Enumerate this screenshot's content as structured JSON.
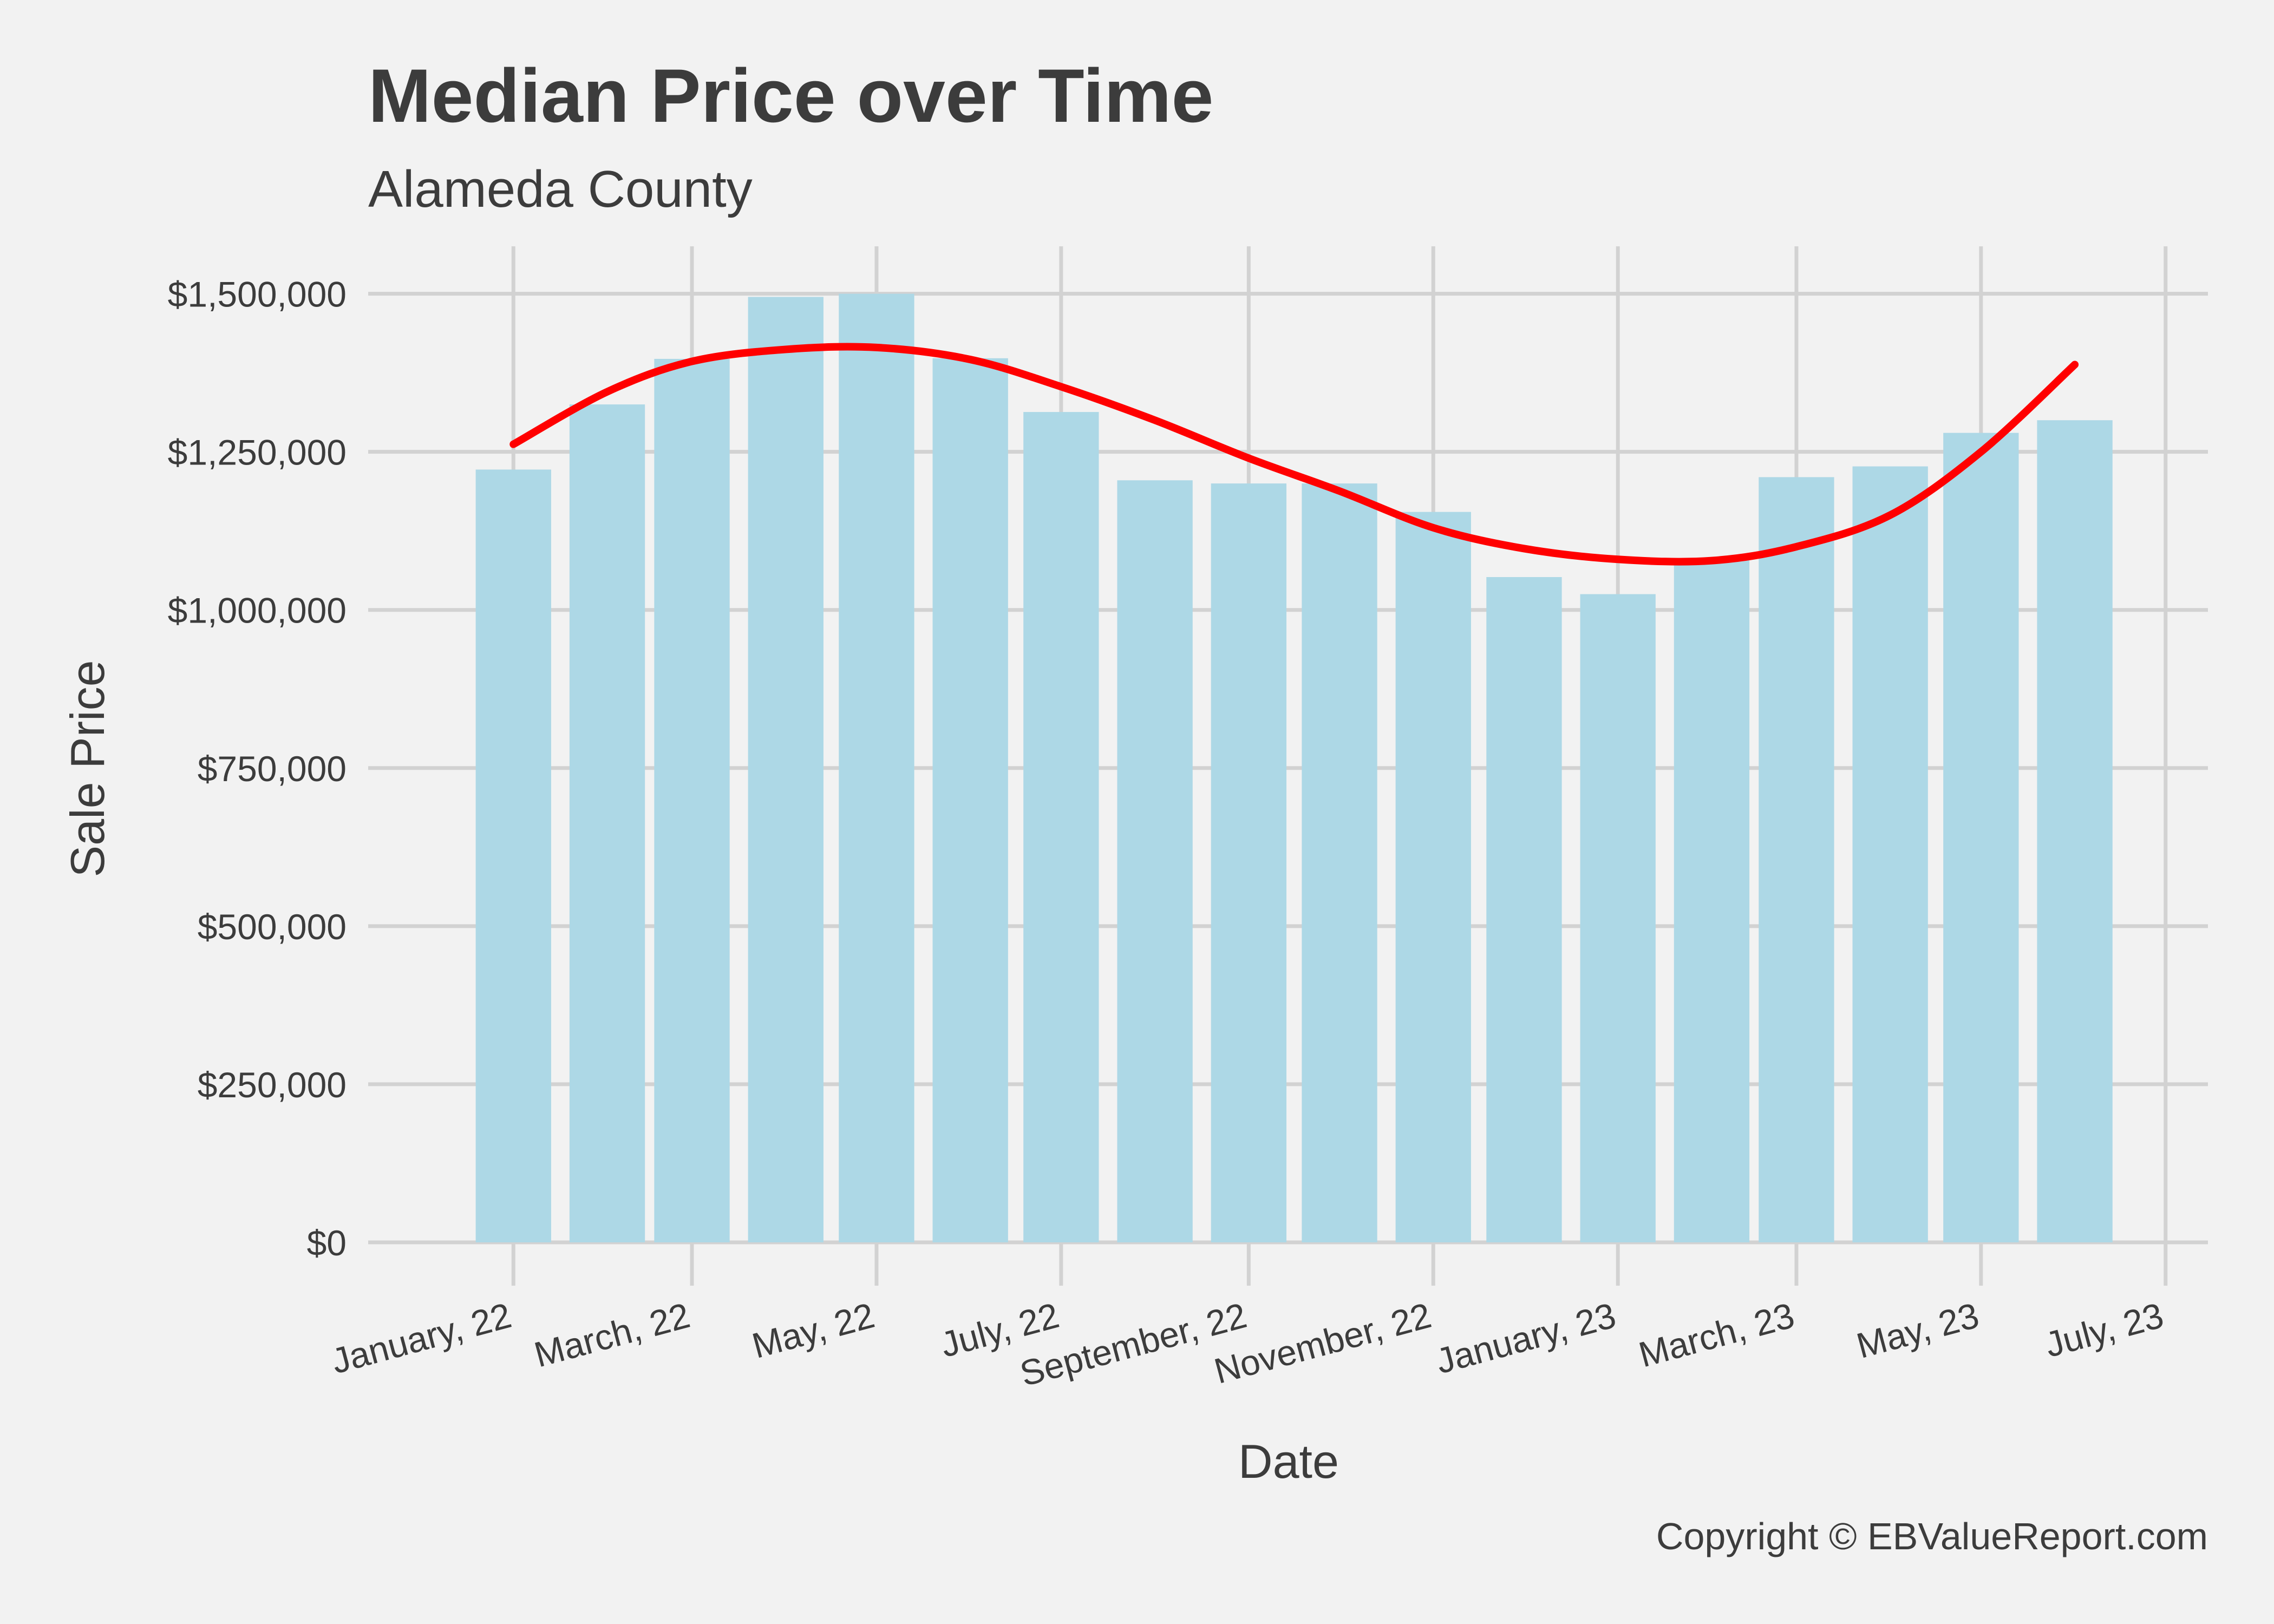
{
  "chart_data": {
    "type": "bar",
    "title": "Median Price over Time",
    "subtitle": "Alameda County",
    "xlabel": "Date",
    "ylabel": "Sale Price",
    "caption": "Copyright  © EBValueReport.com",
    "x_dates": [
      "2022-01-01",
      "2022-02-01",
      "2022-03-01",
      "2022-04-01",
      "2022-05-01",
      "2022-06-01",
      "2022-07-01",
      "2022-08-01",
      "2022-09-01",
      "2022-10-01",
      "2022-11-01",
      "2022-12-01",
      "2023-01-01",
      "2023-02-01",
      "2023-03-01",
      "2023-04-01",
      "2023-05-01",
      "2023-06-01"
    ],
    "values": [
      1222000,
      1325000,
      1397000,
      1495000,
      1500000,
      1398000,
      1313000,
      1205000,
      1200000,
      1200000,
      1155000,
      1052000,
      1025000,
      1080000,
      1210000,
      1227000,
      1280000,
      1300000
    ],
    "trend_line": {
      "color": "#ff0000",
      "x_dates": [
        "2022-01-01",
        "2022-02-01",
        "2022-03-01",
        "2022-04-01",
        "2022-05-01",
        "2022-06-01",
        "2022-07-01",
        "2022-08-01",
        "2022-09-01",
        "2022-10-01",
        "2022-11-01",
        "2022-12-01",
        "2023-01-01",
        "2023-02-01",
        "2023-03-01",
        "2023-04-01",
        "2023-05-01",
        "2023-06-01"
      ],
      "values": [
        1262000,
        1345000,
        1393000,
        1412000,
        1415000,
        1396000,
        1353000,
        1300000,
        1240000,
        1188000,
        1130000,
        1097000,
        1080000,
        1078000,
        1100000,
        1150000,
        1250000,
        1388000
      ]
    },
    "x_ticks": [
      {
        "date": "2022-01-01",
        "label": "January, 22"
      },
      {
        "date": "2022-03-01",
        "label": "March, 22"
      },
      {
        "date": "2022-05-01",
        "label": "May, 22"
      },
      {
        "date": "2022-07-01",
        "label": "July, 22"
      },
      {
        "date": "2022-09-01",
        "label": "September, 22"
      },
      {
        "date": "2022-11-01",
        "label": "November, 22"
      },
      {
        "date": "2023-01-01",
        "label": "January, 23"
      },
      {
        "date": "2023-03-01",
        "label": "March, 23"
      },
      {
        "date": "2023-05-01",
        "label": "May, 23"
      },
      {
        "date": "2023-07-01",
        "label": "July, 23"
      }
    ],
    "y_ticks": [
      {
        "value": 0,
        "label": "$0"
      },
      {
        "value": 250000,
        "label": "$250,000"
      },
      {
        "value": 500000,
        "label": "$500,000"
      },
      {
        "value": 750000,
        "label": "$750,000"
      },
      {
        "value": 1000000,
        "label": "$1,000,000"
      },
      {
        "value": 1250000,
        "label": "$1,250,000"
      },
      {
        "value": 1500000,
        "label": "$1,500,000"
      }
    ],
    "ylim": [
      0,
      1575000
    ],
    "xlim": [
      "2021-11-14",
      "2023-07-15"
    ],
    "grid": true,
    "legend": "none",
    "bar_color": "#add8e6",
    "grid_color": "#d2d2d2",
    "background": "#f2f2f2"
  }
}
